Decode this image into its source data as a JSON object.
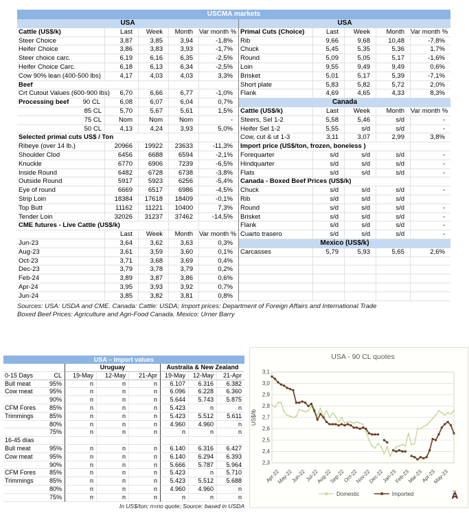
{
  "uscma": {
    "title": "USCMA markets",
    "left": {
      "rows": [
        {
          "s": "region",
          "l": "USA"
        },
        {
          "s": "hdr",
          "l": "Cattle (US$/k)",
          "v": [
            "Last",
            "Week",
            "Month",
            "Var month %"
          ]
        },
        {
          "l": "Steer Choice",
          "v": [
            "3,87",
            "3,85",
            "3,94",
            "-1,8%"
          ]
        },
        {
          "l": "Heifer Choice",
          "v": [
            "3,86",
            "3,83",
            "3,93",
            "-1,7%"
          ]
        },
        {
          "l": "Steer choice carc.",
          "v": [
            "6,19",
            "6,16",
            "6,35",
            "-2,5%"
          ]
        },
        {
          "l": "Heifer Choice Carc.",
          "v": [
            "6,18",
            "6,13",
            "6,34",
            "-2,5%"
          ]
        },
        {
          "l": "Cow 90% lean (400-500 lbs)",
          "v": [
            "4,17",
            "4,03",
            "4,03",
            "3,3%"
          ]
        },
        {
          "s": "sec",
          "l": "Beef",
          "v": [
            "",
            "",
            "",
            ""
          ],
          "span": 0
        },
        {
          "l": "Crt Cutout Values (600-900 lbs)",
          "v": [
            "6,70",
            "6,66",
            "6,77",
            "-1,0%"
          ]
        },
        {
          "s": "proc",
          "l": "Processing beef",
          "l2": "90 CL",
          "v": [
            "6,08",
            "6,07",
            "6,04",
            "0,7%"
          ]
        },
        {
          "s": "sub",
          "l": "85 CL",
          "v": [
            "5,70",
            "5,67",
            "5,61",
            "1,5%"
          ]
        },
        {
          "s": "sub",
          "l": "75 CL",
          "v": [
            "Nom",
            "Nom",
            "Nom",
            "-"
          ]
        },
        {
          "s": "sub",
          "l": "50 CL",
          "v": [
            "4,13",
            "4,24",
            "3,93",
            "5,0%"
          ]
        },
        {
          "s": "sec",
          "l": "Selected primal cuts US$ / Ton",
          "v": [
            "",
            "",
            "",
            ""
          ],
          "span": 1
        },
        {
          "l": "Ribeye (over 14 lb.)",
          "v": [
            "20966",
            "19922",
            "23633",
            "-11,3%"
          ]
        },
        {
          "l": "Shoulder Clod",
          "v": [
            "6456",
            "6688",
            "6594",
            "-2,1%"
          ]
        },
        {
          "l": "Knuckle",
          "v": [
            "6770",
            "6906",
            "7239",
            "-6,5%"
          ]
        },
        {
          "l": "Inside Round",
          "v": [
            "6482",
            "6728",
            "6738",
            "-3,8%"
          ]
        },
        {
          "l": "Outside Round",
          "v": [
            "5917",
            "5923",
            "6256",
            "-5,4%"
          ]
        },
        {
          "l": "Eye of round",
          "v": [
            "6669",
            "6517",
            "6986",
            "-4,5%"
          ]
        },
        {
          "l": "Strip Loin",
          "v": [
            "18384",
            "17618",
            "18409",
            "-0,1%"
          ]
        },
        {
          "l": "Top Butt",
          "v": [
            "11162",
            "11221",
            "10400",
            "7,3%"
          ]
        },
        {
          "l": "Tender Loin",
          "v": [
            "32026",
            "31237",
            "37462",
            "-14,5%"
          ]
        },
        {
          "s": "sec",
          "l": "CME futures - Live Cattle (US$/k)",
          "v": [
            "",
            "",
            "",
            ""
          ],
          "span": 1
        },
        {
          "s": "hdr",
          "l": "",
          "v": [
            "Last",
            "Week",
            "Month",
            "Var month %"
          ]
        },
        {
          "l": "Jun-23",
          "v": [
            "3,64",
            "3,62",
            "3,63",
            "0,3%"
          ]
        },
        {
          "l": "Aug-23",
          "v": [
            "3,61",
            "3,59",
            "3,60",
            "0,1%"
          ]
        },
        {
          "l": "Oct-23",
          "v": [
            "3,71",
            "3,68",
            "3,69",
            "0,4%"
          ]
        },
        {
          "l": "Dec-23",
          "v": [
            "3,79",
            "3,78",
            "3,79",
            "0,2%"
          ]
        },
        {
          "l": "Feb-24",
          "v": [
            "3,89",
            "3,87",
            "3,86",
            "0,6%"
          ]
        },
        {
          "l": "Apr-24",
          "v": [
            "3,95",
            "3,93",
            "3,92",
            "0,7%"
          ]
        },
        {
          "l": "Jun-24",
          "v": [
            "3,85",
            "3,82",
            "3,81",
            "0,8%"
          ]
        }
      ]
    },
    "right": {
      "rows": [
        {
          "s": "region",
          "l": "USA"
        },
        {
          "s": "hdr",
          "l": "Primal Cuts (Choice)",
          "v": [
            "Last",
            "Week",
            "Month",
            "Var month %"
          ]
        },
        {
          "l": "Rib",
          "v": [
            "9,66",
            "9,68",
            "10,48",
            "-7,8%"
          ]
        },
        {
          "l": "Chuck",
          "v": [
            "5,45",
            "5,35",
            "5,36",
            "1,7%"
          ]
        },
        {
          "l": "Round",
          "v": [
            "5,09",
            "5,05",
            "5,17",
            "-1,6%"
          ]
        },
        {
          "l": "Loin",
          "v": [
            "9,55",
            "9,49",
            "9,49",
            "0,6%"
          ]
        },
        {
          "l": "Brisket",
          "v": [
            "5,01",
            "5,17",
            "5,39",
            "-7,1%"
          ]
        },
        {
          "l": "Short plate",
          "v": [
            "5,83",
            "5,82",
            "5,72",
            "2,0%"
          ]
        },
        {
          "l": "Flank",
          "v": [
            "4,69",
            "4,65",
            "4,33",
            "8,3%"
          ]
        },
        {
          "s": "region",
          "l": "Canada"
        },
        {
          "s": "hdr",
          "l": "Cattle (US$/k)",
          "v": [
            "Last",
            "Week",
            "Month",
            "Var month %"
          ]
        },
        {
          "l": "Steers, Sel 1-2",
          "v": [
            "5,58",
            "5,46",
            "s/d",
            "-"
          ]
        },
        {
          "l": "Heifer Sel 1-2",
          "v": [
            "5,55",
            "s/d",
            "s/d",
            "-"
          ]
        },
        {
          "l": "Cow, cut & ut 1-3",
          "v": [
            "3,11",
            "3,07",
            "2,99",
            "3,8%"
          ]
        },
        {
          "s": "sec",
          "l": "Import price (US$/ton, frozen, boneless )",
          "v": [
            "",
            "",
            "",
            ""
          ],
          "span": 2
        },
        {
          "l": "Forequarter",
          "v": [
            "s/d",
            "s/d",
            "s/d",
            "-"
          ]
        },
        {
          "l": "Hindquarter",
          "v": [
            "s/d",
            "s/d",
            "s/d",
            "-"
          ]
        },
        {
          "l": "Flats",
          "v": [
            "s/d",
            "s/d",
            "s/d",
            "-"
          ]
        },
        {
          "s": "sec",
          "l": "Canada - Boxed Beef Prices (US$/k)",
          "v": [
            "",
            "",
            "",
            ""
          ],
          "span": 2
        },
        {
          "l": "Chuck",
          "v": [
            "s/d",
            "s/d",
            "s/d",
            "-"
          ]
        },
        {
          "l": "Rib",
          "v": [
            "s/d",
            "s/d",
            "s/d",
            ""
          ]
        },
        {
          "l": "Round",
          "v": [
            "s/d",
            "s/d",
            "s/d",
            "-"
          ]
        },
        {
          "l": "Brisket",
          "v": [
            "s/d",
            "s/d",
            "s/d",
            "-"
          ]
        },
        {
          "l": "Flank",
          "v": [
            "s/d",
            "s/d",
            "s/d",
            "-"
          ]
        },
        {
          "l": "Cuarto trasero",
          "v": [
            "s/d",
            "s/d",
            "s/d",
            "-"
          ]
        },
        {
          "s": "region",
          "l": "Mexico (US$/k)"
        },
        {
          "l": "Carcasses",
          "v": [
            "5,79",
            "5,93",
            "5,65",
            "2,6%"
          ]
        },
        {
          "s": "empty",
          "l": "",
          "v": [
            "",
            "",
            "",
            ""
          ]
        },
        {
          "s": "empty",
          "l": "",
          "v": [
            "",
            "",
            "",
            ""
          ]
        },
        {
          "s": "empty",
          "l": "",
          "v": [
            "",
            "",
            "",
            ""
          ]
        },
        {
          "s": "empty",
          "l": "",
          "v": [
            "",
            "",
            "",
            ""
          ]
        },
        {
          "s": "empty",
          "l": "",
          "v": [
            "",
            "",
            "",
            ""
          ]
        }
      ]
    },
    "sources": [
      "Sources: USA: USDA and CME. Canada: Cattle: USDA; Import prices: Department of Foreign Affairs and International Trade",
      "Boxed Beef Prices: Agriculture and Agri-Food Canada. Mexico: Urner Barry"
    ]
  },
  "import_table": {
    "title": "USA – Import values",
    "groups": [
      "Uruguay",
      "Australia & New Zealand"
    ],
    "col_headers": [
      "0-15 Days",
      "CL",
      "19-May",
      "12-May",
      "21-Apr",
      "19-May",
      "12-May",
      "21-Apr"
    ],
    "rows": [
      {
        "l": "Bull meat",
        "cl": "95%",
        "v": [
          "n",
          "n",
          "n",
          "6.107",
          "6.316",
          "6.382"
        ]
      },
      {
        "l": "Cow meat",
        "cl": "95%",
        "v": [
          "n",
          "n",
          "n",
          "6.096",
          "6.228",
          "6.360"
        ]
      },
      {
        "l": "",
        "cl": "90%",
        "v": [
          "n",
          "n",
          "n",
          "5.644",
          "5.743",
          "5.875"
        ]
      },
      {
        "l": "CFM Fores",
        "cl": "85%",
        "v": [
          "n",
          "n",
          "n",
          "5.423",
          "n",
          "n"
        ]
      },
      {
        "l": "Trimmings",
        "cl": "85%",
        "v": [
          "n",
          "n",
          "n",
          "5.423",
          "5.512",
          "5.611"
        ]
      },
      {
        "l": "",
        "cl": "80%",
        "v": [
          "n",
          "n",
          "n",
          "4.960",
          "4.960",
          "n"
        ]
      },
      {
        "l": "",
        "cl": "75%",
        "v": [
          "n",
          "n",
          "n",
          "n",
          "n",
          "n"
        ]
      },
      {
        "s": "sec",
        "l": "16-45 días",
        "cl": "",
        "v": [
          "",
          "",
          "",
          "",
          "",
          ""
        ]
      },
      {
        "l": "Bull meat",
        "cl": "95%",
        "v": [
          "n",
          "n",
          "n",
          "6.140",
          "6.316",
          "6.427"
        ]
      },
      {
        "l": "Cow meat",
        "cl": "95%",
        "v": [
          "n",
          "n",
          "n",
          "6.140",
          "6.294",
          "6.393"
        ]
      },
      {
        "l": "",
        "cl": "90%",
        "v": [
          "n",
          "n",
          "n",
          "5.666",
          "5.787",
          "5.964"
        ]
      },
      {
        "l": "CFM Fores",
        "cl": "85%",
        "v": [
          "n",
          "n",
          "n",
          "5.423",
          "n",
          "5.710"
        ]
      },
      {
        "l": "Trimmings",
        "cl": "85%",
        "v": [
          "n",
          "n",
          "n",
          "5.423",
          "5.512",
          "5.688"
        ]
      },
      {
        "l": "",
        "cl": "80%",
        "v": [
          "n",
          "n",
          "n",
          "4.960",
          "4.960",
          "n"
        ]
      },
      {
        "l": "",
        "cl": "75%",
        "v": [
          "n",
          "n",
          "n",
          "n",
          "n",
          "n"
        ]
      }
    ],
    "footnote": "In US$/ton; n=no quote; Source: based in USDA"
  },
  "chart_data": {
    "type": "line",
    "title": "USA - 90 CL quotes",
    "ylabel": "US$/lb",
    "ylim": [
      2.3,
      3.1
    ],
    "ytick_labels": [
      "2,3",
      "2,4",
      "2,5",
      "2,6",
      "2,7",
      "2,8",
      "2,9",
      "3,0",
      "3,1"
    ],
    "x_months": [
      "Apr-22",
      "May-22",
      "Jun-22",
      "Jul-22",
      "Aug-22",
      "Sep-22",
      "Oct-22",
      "Nov-22",
      "Dec-22",
      "Jan-23",
      "Feb-23",
      "Mar-23",
      "Apr-23",
      "May-23"
    ],
    "grid": true,
    "legend_position": "bottom",
    "stray_glyph": "Ã",
    "series": [
      {
        "name": "Domestic",
        "color": "#c3d69b",
        "values": [
          2.81,
          2.79,
          2.83,
          2.83,
          2.75,
          2.72,
          2.71,
          2.7,
          2.71,
          2.77,
          2.76,
          2.75,
          2.76,
          2.8,
          2.74,
          2.72,
          2.78,
          2.71,
          2.76,
          2.7,
          2.74,
          2.71,
          2.66,
          2.7,
          2.65,
          2.66,
          2.66,
          2.65,
          2.66,
          2.65,
          2.64,
          2.58,
          2.5,
          2.45,
          2.43,
          2.47,
          2.44,
          2.38,
          2.44,
          2.36,
          2.41,
          2.44,
          2.45,
          2.46,
          2.45,
          2.56,
          2.46,
          2.47,
          2.6,
          2.6,
          2.62,
          2.63,
          2.66,
          2.69,
          2.72,
          2.76,
          2.74,
          2.72,
          2.74,
          2.73,
          2.76
        ]
      },
      {
        "name": "Imported",
        "color": "#693a23",
        "values": [
          3.06,
          3.04,
          3.01,
          2.99,
          2.98,
          2.96,
          2.95,
          2.94,
          2.83,
          2.83,
          2.84,
          2.83,
          2.8,
          2.82,
          2.76,
          2.68,
          2.73,
          2.7,
          2.66,
          2.64,
          2.64,
          2.64,
          2.63,
          2.64,
          2.63,
          2.64,
          2.63,
          2.61,
          2.61,
          2.6,
          2.61,
          2.6,
          2.56,
          2.55,
          2.55,
          2.55,
          null,
          2.5,
          2.48,
          null,
          2.41,
          2.4,
          2.41,
          2.4,
          2.4,
          null,
          2.36,
          2.35,
          2.33,
          2.35,
          2.34,
          2.35,
          2.41,
          2.51,
          2.5,
          2.55,
          2.61,
          2.64,
          2.66,
          2.63,
          2.56
        ]
      }
    ]
  }
}
